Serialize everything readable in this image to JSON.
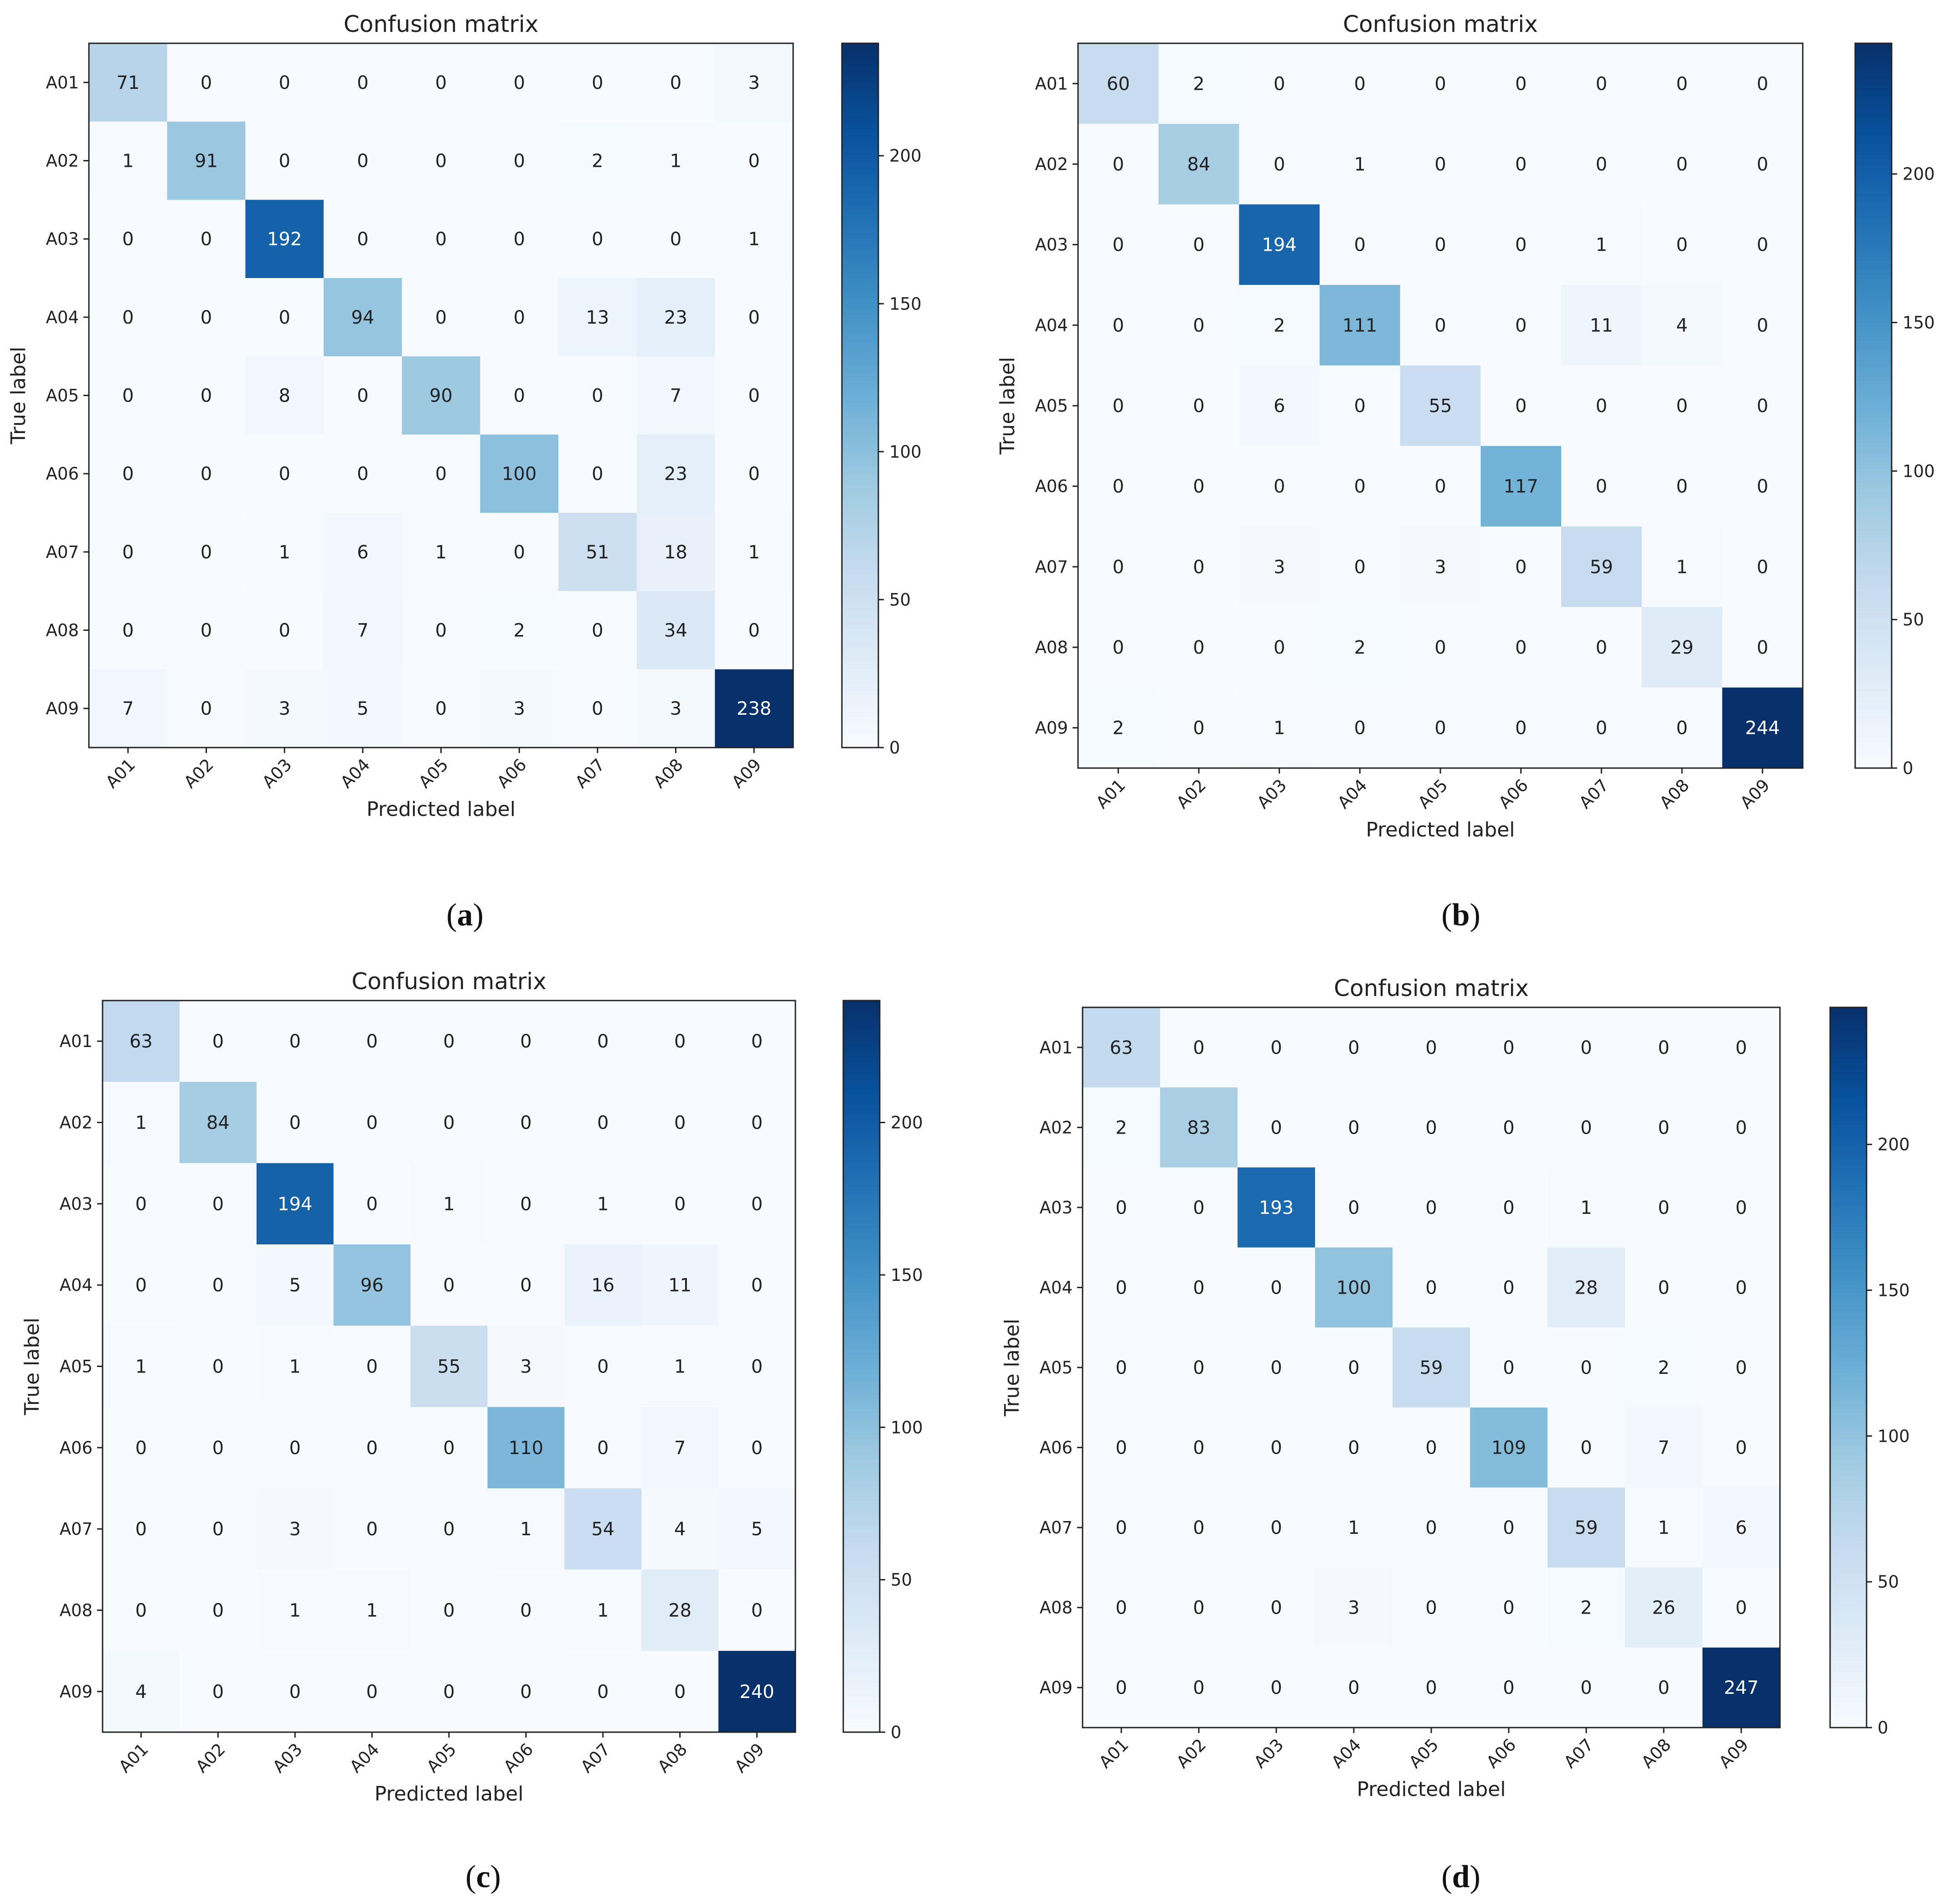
{
  "chart_data": [
    {
      "type": "heatmap",
      "panel": "a",
      "caption": "(a)",
      "title": "Confusion matrix",
      "xlabel": "Predicted label",
      "ylabel": "True label",
      "categories": [
        "A01",
        "A02",
        "A03",
        "A04",
        "A05",
        "A06",
        "A07",
        "A08",
        "A09"
      ],
      "matrix": [
        [
          71,
          0,
          0,
          0,
          0,
          0,
          0,
          0,
          3
        ],
        [
          1,
          91,
          0,
          0,
          0,
          0,
          2,
          1,
          0
        ],
        [
          0,
          0,
          192,
          0,
          0,
          0,
          0,
          0,
          1
        ],
        [
          0,
          0,
          0,
          94,
          0,
          0,
          13,
          23,
          0
        ],
        [
          0,
          0,
          8,
          0,
          90,
          0,
          0,
          7,
          0
        ],
        [
          0,
          0,
          0,
          0,
          0,
          100,
          0,
          23,
          0
        ],
        [
          0,
          0,
          1,
          6,
          1,
          0,
          51,
          18,
          1
        ],
        [
          0,
          0,
          0,
          7,
          0,
          2,
          0,
          34,
          0
        ],
        [
          7,
          0,
          3,
          5,
          0,
          3,
          0,
          3,
          238
        ]
      ],
      "colorbar_ticks": [
        "0",
        "50",
        "100",
        "150",
        "200"
      ],
      "color_range": [
        0,
        238
      ]
    },
    {
      "type": "heatmap",
      "panel": "b",
      "caption": "(b)",
      "title": "Confusion matrix",
      "xlabel": "Predicted label",
      "ylabel": "True label",
      "categories": [
        "A01",
        "A02",
        "A03",
        "A04",
        "A05",
        "A06",
        "A07",
        "A08",
        "A09"
      ],
      "matrix": [
        [
          60,
          2,
          0,
          0,
          0,
          0,
          0,
          0,
          0
        ],
        [
          0,
          84,
          0,
          1,
          0,
          0,
          0,
          0,
          0
        ],
        [
          0,
          0,
          194,
          0,
          0,
          0,
          1,
          0,
          0
        ],
        [
          0,
          0,
          2,
          111,
          0,
          0,
          11,
          4,
          0
        ],
        [
          0,
          0,
          6,
          0,
          55,
          0,
          0,
          0,
          0
        ],
        [
          0,
          0,
          0,
          0,
          0,
          117,
          0,
          0,
          0
        ],
        [
          0,
          0,
          3,
          0,
          3,
          0,
          59,
          1,
          0
        ],
        [
          0,
          0,
          0,
          2,
          0,
          0,
          0,
          29,
          0
        ],
        [
          2,
          0,
          1,
          0,
          0,
          0,
          0,
          0,
          244
        ]
      ],
      "colorbar_ticks": [
        "0",
        "50",
        "100",
        "150",
        "200"
      ],
      "color_range": [
        0,
        244
      ]
    },
    {
      "type": "heatmap",
      "panel": "c",
      "caption": "(c)",
      "title": "Confusion matrix",
      "xlabel": "Predicted label",
      "ylabel": "True label",
      "categories": [
        "A01",
        "A02",
        "A03",
        "A04",
        "A05",
        "A06",
        "A07",
        "A08",
        "A09"
      ],
      "matrix": [
        [
          63,
          0,
          0,
          0,
          0,
          0,
          0,
          0,
          0
        ],
        [
          1,
          84,
          0,
          0,
          0,
          0,
          0,
          0,
          0
        ],
        [
          0,
          0,
          194,
          0,
          1,
          0,
          1,
          0,
          0
        ],
        [
          0,
          0,
          5,
          96,
          0,
          0,
          16,
          11,
          0
        ],
        [
          1,
          0,
          1,
          0,
          55,
          3,
          0,
          1,
          0
        ],
        [
          0,
          0,
          0,
          0,
          0,
          110,
          0,
          7,
          0
        ],
        [
          0,
          0,
          3,
          0,
          0,
          1,
          54,
          4,
          5
        ],
        [
          0,
          0,
          1,
          1,
          0,
          0,
          1,
          28,
          0
        ],
        [
          4,
          0,
          0,
          0,
          0,
          0,
          0,
          0,
          240
        ]
      ],
      "colorbar_ticks": [
        "0",
        "50",
        "100",
        "150",
        "200"
      ],
      "color_range": [
        0,
        240
      ]
    },
    {
      "type": "heatmap",
      "panel": "d",
      "caption": "(d)",
      "title": "Confusion matrix",
      "xlabel": "Predicted label",
      "ylabel": "True label",
      "categories": [
        "A01",
        "A02",
        "A03",
        "A04",
        "A05",
        "A06",
        "A07",
        "A08",
        "A09"
      ],
      "matrix": [
        [
          63,
          0,
          0,
          0,
          0,
          0,
          0,
          0,
          0
        ],
        [
          2,
          83,
          0,
          0,
          0,
          0,
          0,
          0,
          0
        ],
        [
          0,
          0,
          193,
          0,
          0,
          0,
          1,
          0,
          0
        ],
        [
          0,
          0,
          0,
          100,
          0,
          0,
          28,
          0,
          0
        ],
        [
          0,
          0,
          0,
          0,
          59,
          0,
          0,
          2,
          0
        ],
        [
          0,
          0,
          0,
          0,
          0,
          109,
          0,
          7,
          0
        ],
        [
          0,
          0,
          0,
          1,
          0,
          0,
          59,
          1,
          6
        ],
        [
          0,
          0,
          0,
          3,
          0,
          0,
          2,
          26,
          0
        ],
        [
          0,
          0,
          0,
          0,
          0,
          0,
          0,
          0,
          247
        ]
      ],
      "colorbar_ticks": [
        "0",
        "50",
        "100",
        "150",
        "200"
      ],
      "color_range": [
        0,
        247
      ]
    }
  ]
}
